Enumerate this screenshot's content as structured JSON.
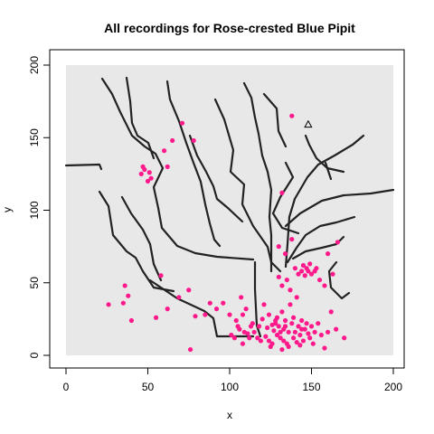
{
  "chart_data": {
    "type": "scatter",
    "title": "All recordings for Rose-crested Blue Pipit",
    "xlabel": "x",
    "ylabel": "y",
    "xlim": [
      0,
      200
    ],
    "ylim": [
      0,
      200
    ],
    "xticks": [
      "0",
      "50",
      "100",
      "150",
      "200"
    ],
    "yticks": [
      "0",
      "50",
      "100",
      "150",
      "200"
    ],
    "grid": false,
    "legend": "none",
    "colors": {
      "panel": "#e8e8e8",
      "points": "#ff1a8c",
      "streams": "#222222",
      "frame": "#000000"
    },
    "series": [
      {
        "marker": "circle",
        "points": [
          [
            26,
            35
          ],
          [
            35,
            36
          ],
          [
            36,
            48
          ],
          [
            38,
            41
          ],
          [
            40,
            24
          ],
          [
            55,
            26
          ],
          [
            58,
            55
          ],
          [
            62,
            32
          ],
          [
            69,
            40
          ],
          [
            71,
            160
          ],
          [
            75,
            45
          ],
          [
            76,
            4
          ],
          [
            79,
            27
          ],
          [
            85,
            28
          ],
          [
            88,
            36
          ],
          [
            92,
            32
          ],
          [
            96,
            36
          ],
          [
            100,
            28
          ],
          [
            101,
            14
          ],
          [
            103,
            12
          ],
          [
            105,
            20
          ],
          [
            106,
            18
          ],
          [
            107,
            40
          ],
          [
            108,
            28
          ],
          [
            108,
            8
          ],
          [
            110,
            32
          ],
          [
            111,
            15
          ],
          [
            112,
            12
          ],
          [
            114,
            22
          ],
          [
            115,
            16
          ],
          [
            118,
            20
          ],
          [
            119,
            10
          ],
          [
            120,
            25
          ],
          [
            121,
            35
          ],
          [
            122,
            13
          ],
          [
            123,
            19
          ],
          [
            124,
            28
          ],
          [
            125,
            6
          ],
          [
            126,
            21
          ],
          [
            127,
            17
          ],
          [
            128,
            24
          ],
          [
            129,
            14
          ],
          [
            130,
            20
          ],
          [
            131,
            12
          ],
          [
            132,
            30
          ],
          [
            133,
            18
          ],
          [
            134,
            24
          ],
          [
            135,
            8
          ],
          [
            136,
            16
          ],
          [
            137,
            35
          ],
          [
            138,
            22
          ],
          [
            139,
            12
          ],
          [
            140,
            16
          ],
          [
            141,
            40
          ],
          [
            142,
            20
          ],
          [
            143,
            14
          ],
          [
            144,
            24
          ],
          [
            145,
            10
          ],
          [
            146,
            18
          ],
          [
            147,
            22
          ],
          [
            148,
            15
          ],
          [
            149,
            12
          ],
          [
            150,
            20
          ],
          [
            151,
            8
          ],
          [
            152,
            16
          ],
          [
            154,
            22
          ],
          [
            156,
            14
          ],
          [
            158,
            5
          ],
          [
            160,
            16
          ],
          [
            162,
            30
          ],
          [
            165,
            18
          ],
          [
            170,
            12
          ],
          [
            130,
            54
          ],
          [
            132,
            48
          ],
          [
            135,
            52
          ],
          [
            137,
            45
          ],
          [
            140,
            60
          ],
          [
            142,
            56
          ],
          [
            144,
            58
          ],
          [
            145,
            62
          ],
          [
            146,
            55
          ],
          [
            147,
            60
          ],
          [
            148,
            58
          ],
          [
            149,
            63
          ],
          [
            150,
            56
          ],
          [
            152,
            58
          ],
          [
            153,
            60
          ],
          [
            155,
            52
          ],
          [
            158,
            48
          ],
          [
            160,
            70
          ],
          [
            163,
            56
          ],
          [
            166,
            78
          ],
          [
            130,
            75
          ],
          [
            134,
            70
          ],
          [
            138,
            80
          ],
          [
            124,
            10
          ],
          [
            126,
            8
          ],
          [
            132,
            4
          ],
          [
            136,
            6
          ],
          [
            141,
            9
          ],
          [
            143,
            7
          ],
          [
            128,
            22
          ],
          [
            129,
            26
          ],
          [
            131,
            16
          ],
          [
            133,
            10
          ],
          [
            139,
            26
          ],
          [
            144,
            18
          ],
          [
            134,
            20
          ],
          [
            117,
            12
          ],
          [
            113,
            20
          ],
          [
            109,
            16
          ],
          [
            104,
            24
          ],
          [
            46,
            125
          ],
          [
            47,
            130
          ],
          [
            48,
            128
          ],
          [
            50,
            120
          ],
          [
            51,
            126
          ],
          [
            60,
            141
          ],
          [
            62,
            130
          ],
          [
            78,
            148
          ],
          [
            65,
            148
          ],
          [
            138,
            165
          ],
          [
            132,
            112
          ],
          [
            52,
            122
          ]
        ]
      },
      {
        "marker": "triangle",
        "points": [
          [
            148,
            159
          ]
        ]
      }
    ]
  }
}
